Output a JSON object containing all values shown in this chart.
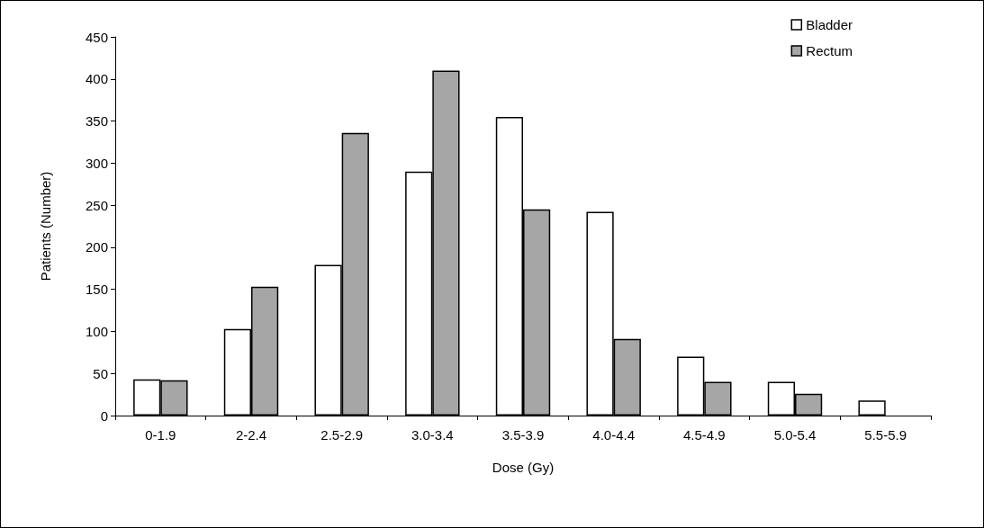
{
  "chart_data": {
    "type": "bar",
    "xlabel": "Dose (Gy)",
    "ylabel": "Patients (Number)",
    "categories": [
      "0-1.9",
      "2-2.4",
      "2.5-2.9",
      "3.0-3.4",
      "3.5-3.9",
      "4.0-4.4",
      "4.5-4.9",
      "5.0-5.4",
      "5.5-5.9"
    ],
    "series": [
      {
        "name": "Bladder",
        "color": "#ffffff",
        "values": [
          43,
          103,
          179,
          290,
          355,
          242,
          70,
          40,
          18
        ]
      },
      {
        "name": "Rectum",
        "color": "#a6a6a6",
        "values": [
          42,
          153,
          336,
          410,
          245,
          91,
          40,
          26,
          null
        ]
      }
    ],
    "ylim": [
      0,
      450
    ],
    "yticks": [
      0,
      50,
      100,
      150,
      200,
      250,
      300,
      350,
      400,
      450
    ],
    "grid": false,
    "legend": "top right"
  }
}
